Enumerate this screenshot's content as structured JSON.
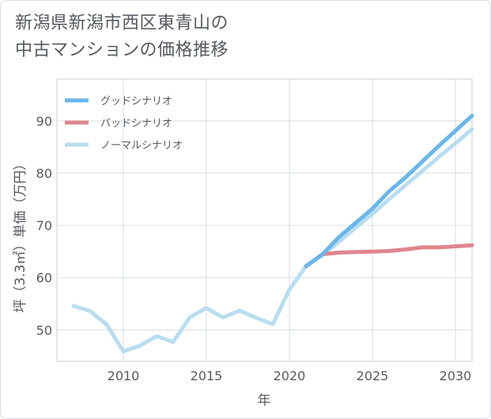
{
  "title_lines": [
    "新潟県新潟市西区東青山の",
    "中古マンションの価格推移"
  ],
  "chart_data": {
    "type": "line",
    "xlabel": "年",
    "ylabel": "坪（3.3㎡）単価（万円）",
    "xlim": [
      2006,
      2031
    ],
    "ylim": [
      44,
      98
    ],
    "x_ticks": [
      2010,
      2015,
      2020,
      2025,
      2030
    ],
    "y_ticks": [
      50,
      60,
      70,
      80,
      90
    ],
    "grid": true,
    "legend_position": "top-left",
    "series": [
      {
        "name": "グッドシナリオ",
        "color": "#6cb6e8",
        "x": [
          2021,
          2022,
          2023,
          2024,
          2025,
          2026,
          2027,
          2028,
          2029,
          2030,
          2031
        ],
        "values": [
          62.2,
          64.5,
          67.8,
          70.5,
          73.2,
          76.5,
          79.2,
          82.2,
          85.2,
          88.1,
          91.0
        ]
      },
      {
        "name": "バッドシナリオ",
        "color": "#e0858e",
        "x": [
          2021,
          2022,
          2023,
          2024,
          2025,
          2026,
          2027,
          2028,
          2029,
          2030,
          2031
        ],
        "values": [
          62.2,
          64.5,
          64.8,
          64.9,
          65.0,
          65.1,
          65.4,
          65.8,
          65.8,
          66.0,
          66.2
        ]
      },
      {
        "name": "ノーマルシナリオ",
        "color": "#b9ddef",
        "x": [
          2007,
          2008,
          2009,
          2010,
          2011,
          2012,
          2013,
          2014,
          2015,
          2016,
          2017,
          2018,
          2019,
          2020,
          2021,
          2022,
          2023,
          2024,
          2025,
          2026,
          2027,
          2028,
          2029,
          2030,
          2031
        ],
        "values": [
          54.6,
          53.6,
          51.0,
          45.9,
          47.0,
          48.8,
          47.7,
          52.4,
          54.2,
          52.4,
          53.7,
          52.3,
          51.1,
          57.7,
          62.2,
          64.3,
          66.9,
          69.6,
          72.2,
          75.0,
          77.7,
          80.4,
          83.1,
          85.7,
          88.4
        ]
      }
    ]
  }
}
